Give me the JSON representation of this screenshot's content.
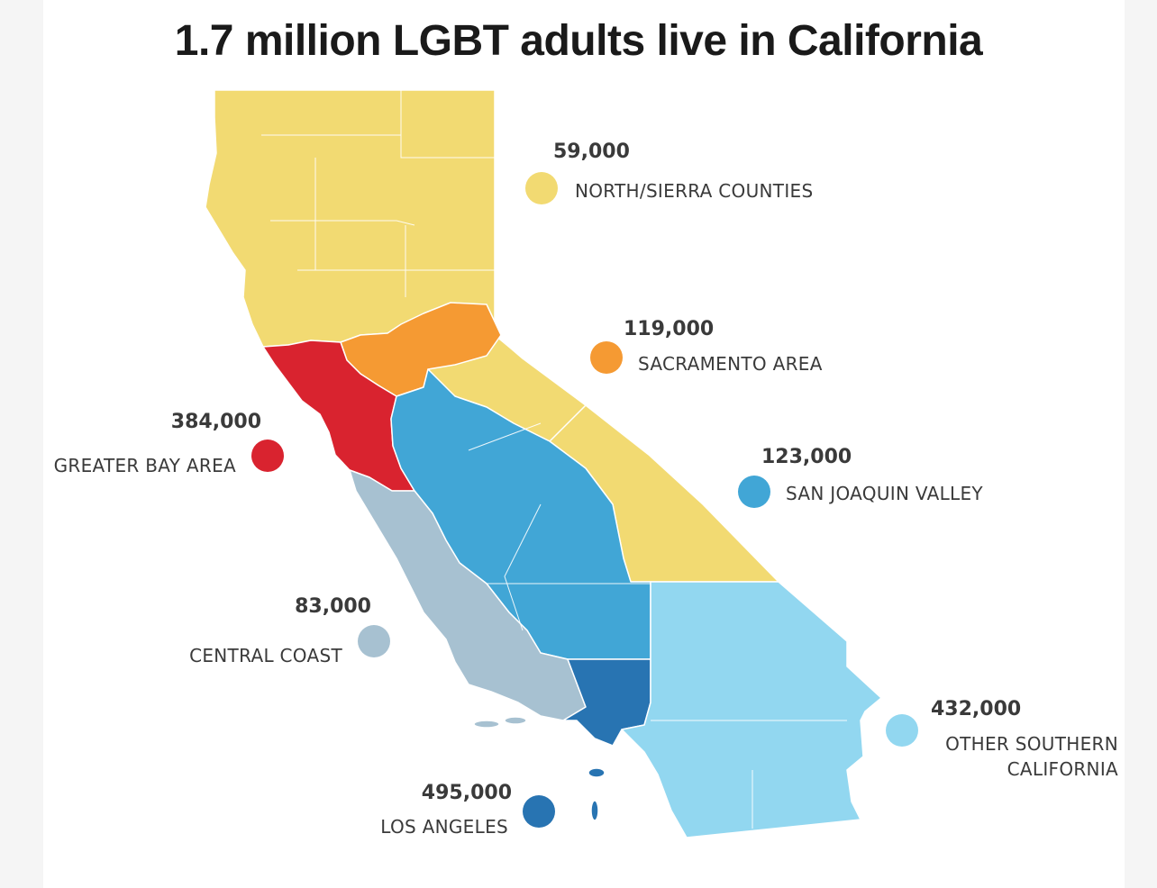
{
  "title": "1.7 million LGBT adults live in California",
  "colors": {
    "north_sierra": "#f2da72",
    "sacramento": "#f59a33",
    "bay_area": "#d9232f",
    "san_joaquin": "#41a6d6",
    "central_coast": "#a7c1d1",
    "los_angeles": "#2874b2",
    "other_south": "#92d7f0"
  },
  "regions": [
    {
      "value": "59,000",
      "name": "NORTH/SIERRA COUNTIES",
      "color": "#f2da72"
    },
    {
      "value": "119,000",
      "name": "SACRAMENTO AREA",
      "color": "#f59a33"
    },
    {
      "value": "384,000",
      "name": "GREATER BAY AREA",
      "color": "#d9232f"
    },
    {
      "value": "123,000",
      "name": "SAN JOAQUIN VALLEY",
      "color": "#41a6d6"
    },
    {
      "value": "83,000",
      "name": "CENTRAL COAST",
      "color": "#a7c1d1"
    },
    {
      "value": "432,000",
      "name": "OTHER SOUTHERN",
      "name2": "CALIFORNIA",
      "color": "#92d7f0"
    },
    {
      "value": "495,000",
      "name": "LOS ANGELES",
      "color": "#2874b2"
    }
  ]
}
